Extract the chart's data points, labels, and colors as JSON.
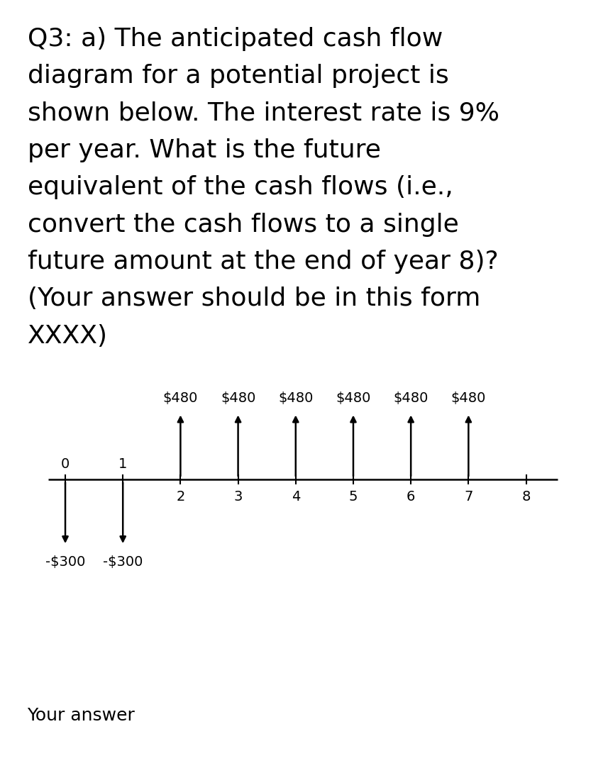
{
  "title_lines": [
    "Q3: a) The anticipated cash flow",
    "diagram for a potential project is",
    "shown below. The interest rate is 9%",
    "per year. What is the future",
    "equivalent of the cash flows (i.e.,",
    "convert the cash flows to a single",
    "future amount at the end of year 8)?",
    "(Your answer should be in this form",
    "XXXX)"
  ],
  "footer_text": "Your answer",
  "timeline_periods": [
    0,
    1,
    2,
    3,
    4,
    5,
    6,
    7,
    8
  ],
  "periods_above_line": [
    0,
    1
  ],
  "periods_below_line": [
    2,
    3,
    4,
    5,
    6,
    7,
    8
  ],
  "positive_flows": [
    {
      "period": 2,
      "amount": "$480"
    },
    {
      "period": 3,
      "amount": "$480"
    },
    {
      "period": 4,
      "amount": "$480"
    },
    {
      "period": 5,
      "amount": "$480"
    },
    {
      "period": 6,
      "amount": "$480"
    },
    {
      "period": 7,
      "amount": "$480"
    }
  ],
  "negative_flows": [
    {
      "period": 0,
      "amount": "-$300"
    },
    {
      "period": 1,
      "amount": "-$300"
    }
  ],
  "background_color": "#ffffff",
  "text_color": "#000000",
  "arrow_color": "#000000",
  "title_fontsize": 26,
  "label_fontsize": 14,
  "tick_fontsize": 14,
  "footer_fontsize": 18
}
